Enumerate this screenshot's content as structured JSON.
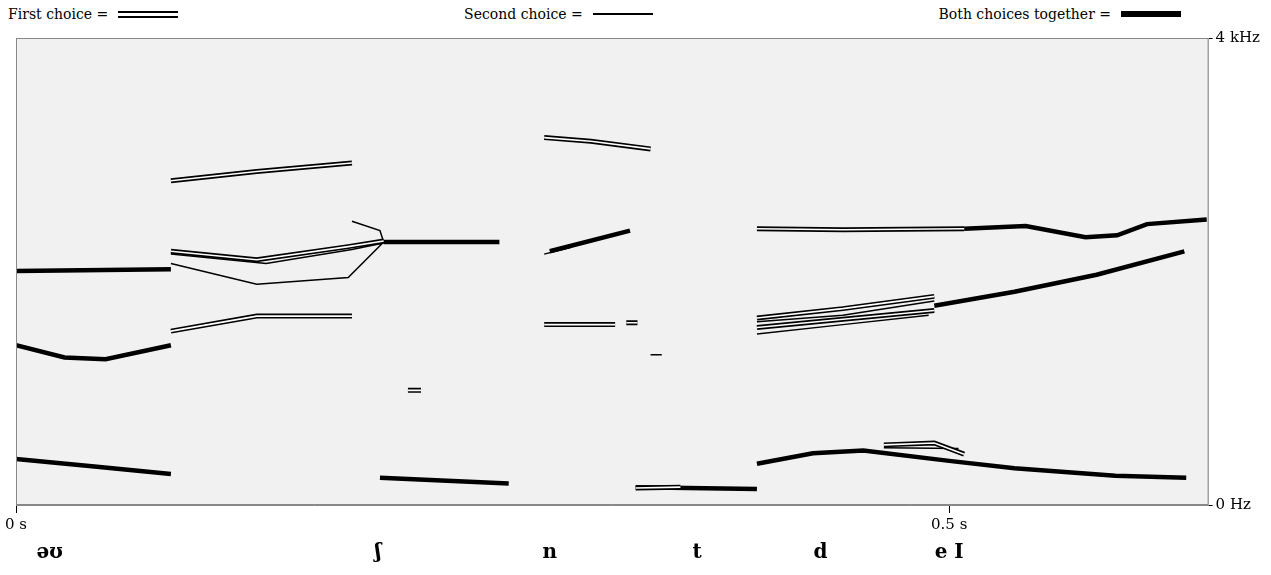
{
  "chart_data": {
    "type": "line",
    "xlim": [
      0,
      0.639
    ],
    "ylim": [
      0,
      4000
    ],
    "xticks": [
      {
        "value": 0,
        "label": "0 s"
      },
      {
        "value": 0.5,
        "label": "0.5 s"
      }
    ],
    "yticks": [
      {
        "value": 0,
        "label": "0 Hz"
      },
      {
        "value": 4000,
        "label": "4 kHz"
      }
    ],
    "grid": false,
    "legend": "top",
    "annotations": [
      {
        "text": "əʊ",
        "x": 0.018
      },
      {
        "text": "ʃ",
        "x": 0.194
      },
      {
        "text": "n",
        "x": 0.286
      },
      {
        "text": "t",
        "x": 0.365
      },
      {
        "text": "d",
        "x": 0.431
      },
      {
        "text": "e I",
        "x": 0.5
      }
    ],
    "series": [
      {
        "name": "First choice =",
        "color": "#000000",
        "line_style": "double",
        "x": [
          0.083,
          0.129,
          0.18,
          null,
          0.083,
          0.129,
          0.178,
          0.197,
          null,
          0.083,
          0.129,
          0.18,
          null,
          0.21,
          0.217,
          null,
          0.283,
          0.308,
          0.34,
          null,
          0.283,
          0.321,
          null,
          0.327,
          0.333,
          null,
          0.332,
          0.356,
          null,
          0.397,
          0.443,
          0.508,
          null,
          0.397,
          0.443,
          0.492,
          null,
          0.397,
          0.492,
          null,
          0.465,
          0.492,
          0.508
        ],
        "values": [
          2777,
          2857,
          2930,
          null,
          2173,
          2101,
          2213,
          2261,
          null,
          1489,
          1618,
          1618,
          null,
          982,
          982,
          null,
          3147,
          3115,
          3050,
          null,
          1545,
          1545,
          null,
          1561,
          1561,
          null,
          145,
          153,
          null,
          2366,
          2358,
          2366,
          null,
          1602,
          1682,
          1787,
          null,
          1521,
          1666,
          null,
          515,
          531,
          435
        ]
      },
      {
        "name": "Second choice =",
        "color": "#000000",
        "line_style": "thin",
        "x": [
          0.083,
          0.134,
          0.18,
          0.197,
          null,
          0.083,
          0.129,
          0.178,
          0.197,
          null,
          0.18,
          0.195,
          0.197,
          null,
          0.283,
          0.297,
          null,
          0.34,
          0.346,
          null,
          0.397,
          0.443,
          0.492,
          null,
          0.397,
          0.443,
          0.489,
          null,
          0.465,
          0.505
        ],
        "values": [
          2149,
          2068,
          2189,
          2245,
          null,
          2068,
          1891,
          1948,
          2253,
          null,
          2430,
          2350,
          2253,
          null,
          2149,
          2205,
          null,
          1288,
          1288,
          null,
          1569,
          1626,
          1747,
          null,
          1465,
          1545,
          1626,
          null,
          491,
          483
        ]
      },
      {
        "name": "Both choices together =",
        "color": "#000000",
        "line_style": "thick",
        "x": [
          0,
          0.083,
          null,
          0,
          0.026,
          0.048,
          0.083,
          null,
          0,
          0.042,
          0.083,
          null,
          0.197,
          0.259,
          null,
          0.195,
          0.264,
          null,
          0.286,
          0.329,
          null,
          0.332,
          0.397,
          null,
          0.508,
          0.541,
          0.573,
          0.59,
          0.606,
          0.638,
          null,
          0.492,
          0.535,
          0.579,
          0.626,
          null,
          0.397,
          0.427,
          0.454,
          0.5,
          0.535,
          0.589,
          0.627
        ],
        "values": [
          2004,
          2020,
          null,
          1368,
          1264,
          1248,
          1368,
          null,
          394,
          330,
          266,
          null,
          2253,
          2253,
          null,
          233,
          185,
          null,
          2173,
          2350,
          null,
          153,
          137,
          null,
          2366,
          2390,
          2294,
          2310,
          2406,
          2446,
          null,
          1706,
          1827,
          1972,
          2173,
          null,
          354,
          443,
          467,
          378,
          314,
          250,
          233
        ]
      }
    ]
  }
}
